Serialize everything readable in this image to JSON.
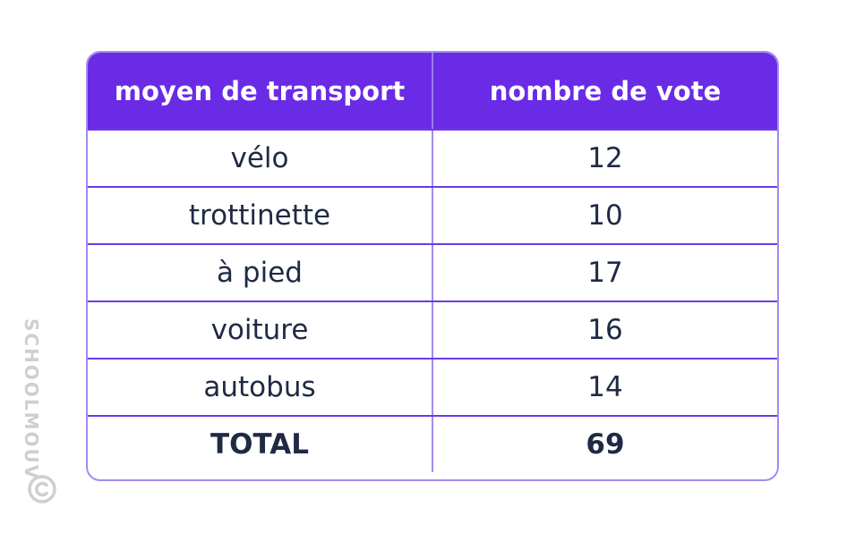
{
  "table": {
    "headers": [
      "moyen de transport",
      "nombre de vote"
    ],
    "rows": [
      [
        "vélo",
        "12"
      ],
      [
        "trottinette",
        "10"
      ],
      [
        "à pied",
        "17"
      ],
      [
        "voiture",
        "16"
      ],
      [
        "autobus",
        "14"
      ]
    ],
    "total": [
      "TOTAL",
      "69"
    ]
  },
  "watermark": {
    "text": "SCHOOLMOUV",
    "icon": "copyright-icon"
  },
  "colors": {
    "header_bg": "#6a2be6",
    "border": "#a58af0",
    "row_line": "#6a3be6",
    "text": "#1f2a44",
    "watermark": "#cfcfcf"
  }
}
